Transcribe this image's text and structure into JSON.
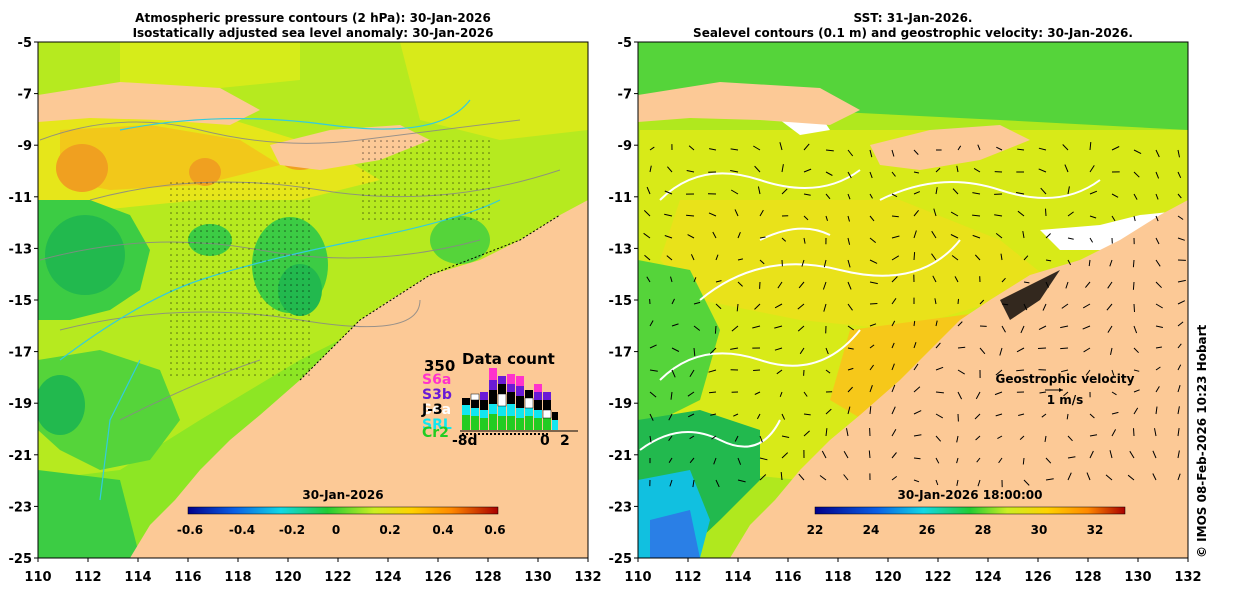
{
  "left_panel": {
    "title_line1": "Atmospheric pressure contours (2 hPa): 30-Jan-2026",
    "title_line2": "Isostatically adjusted sea level anomaly: 30-Jan-2026",
    "colorbar": {
      "label": "30-Jan-2026",
      "ticks": [
        "-0.6",
        "-0.4",
        "-0.2",
        "0",
        "0.2",
        "0.4",
        "0.6"
      ]
    },
    "data_count": {
      "title": "Data count",
      "max_label": "350",
      "missions": [
        {
          "name": "S6a",
          "color": "#ff33cc"
        },
        {
          "name": "S3b",
          "color": "#6a1ad6"
        },
        {
          "name": "Sea",
          "color": "#ffffff"
        },
        {
          "name": "J-3",
          "color": "#000000"
        },
        {
          "name": "SRL",
          "color": "#11e6f0"
        },
        {
          "name": "Cr2",
          "color": "#22cc22"
        }
      ],
      "axis_labels": [
        "-8d",
        "0",
        "2"
      ]
    }
  },
  "right_panel": {
    "title_line1": "SST: 31-Jan-2026.",
    "title_line2": "Sealevel contours (0.1 m) and geostrophic velocity: 30-Jan-2026.",
    "colorbar": {
      "label": "30-Jan-2026 18:00:00",
      "ticks": [
        "22",
        "24",
        "26",
        "28",
        "30",
        "32"
      ]
    },
    "velocity_legend": {
      "title": "Geostrophic velocity",
      "scale": "1 m/s"
    }
  },
  "axes": {
    "lon_ticks": [
      "110",
      "112",
      "114",
      "116",
      "118",
      "120",
      "122",
      "124",
      "126",
      "128",
      "130",
      "132"
    ],
    "lat_ticks": [
      "-5",
      "-7",
      "-9",
      "-11",
      "-13",
      "-15",
      "-17",
      "-19",
      "-21",
      "-23",
      "-25"
    ]
  },
  "credit": "© IMOS 08-Feb-2026 10:23 Hobart",
  "colors": {
    "land": "#fcc996",
    "ocean_mid": "#8de624",
    "cloud": "#ffffff"
  }
}
